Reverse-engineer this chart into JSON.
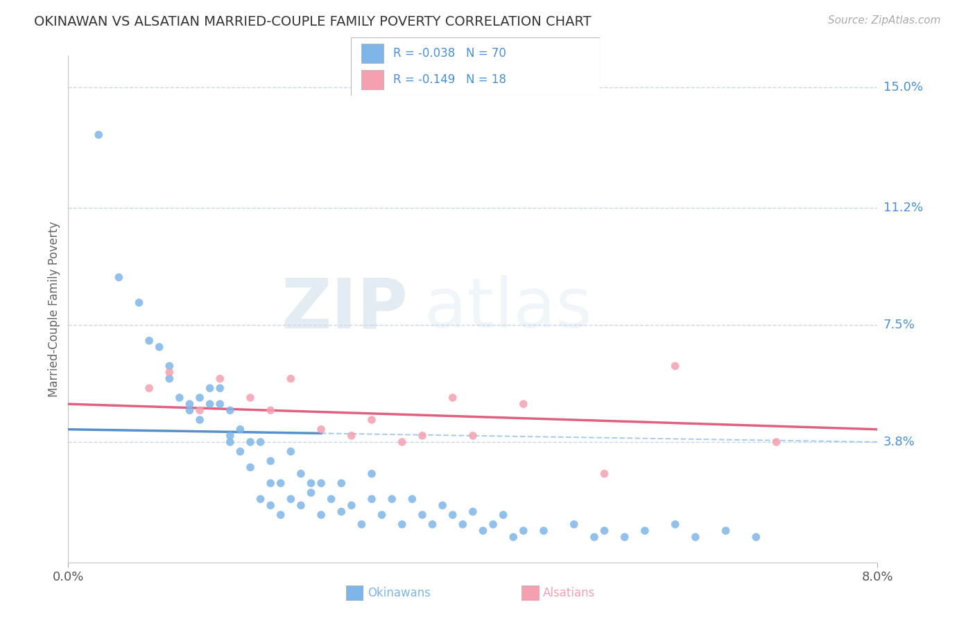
{
  "title": "OKINAWAN VS ALSATIAN MARRIED-COUPLE FAMILY POVERTY CORRELATION CHART",
  "source": "Source: ZipAtlas.com",
  "ylabel": "Married-Couple Family Poverty",
  "xlim": [
    0.0,
    0.08
  ],
  "ylim": [
    0.0,
    0.16
  ],
  "ytick_values": [
    0.038,
    0.075,
    0.112,
    0.15
  ],
  "ytick_labels": [
    "3.8%",
    "7.5%",
    "11.2%",
    "15.0%"
  ],
  "okinawan_color": "#7eb5e8",
  "okinawan_line_color": "#5590cc",
  "alsatian_color": "#f4a0b0",
  "alsatian_line_color": "#e06080",
  "legend_R1": "-0.038",
  "legend_N1": "70",
  "legend_R2": "-0.149",
  "legend_N2": "18",
  "grid_color": "#c8d8ea",
  "text_color": "#4a90d9",
  "okinawan_x": [
    0.003,
    0.005,
    0.007,
    0.008,
    0.009,
    0.01,
    0.01,
    0.011,
    0.012,
    0.012,
    0.013,
    0.013,
    0.014,
    0.014,
    0.015,
    0.015,
    0.016,
    0.016,
    0.016,
    0.017,
    0.017,
    0.018,
    0.018,
    0.019,
    0.019,
    0.02,
    0.02,
    0.02,
    0.021,
    0.021,
    0.022,
    0.022,
    0.023,
    0.023,
    0.024,
    0.024,
    0.025,
    0.025,
    0.026,
    0.027,
    0.027,
    0.028,
    0.029,
    0.03,
    0.03,
    0.031,
    0.032,
    0.033,
    0.034,
    0.035,
    0.036,
    0.037,
    0.038,
    0.039,
    0.04,
    0.041,
    0.042,
    0.043,
    0.044,
    0.045,
    0.047,
    0.05,
    0.052,
    0.053,
    0.055,
    0.057,
    0.06,
    0.062,
    0.065,
    0.068
  ],
  "okinawan_y": [
    0.135,
    0.09,
    0.082,
    0.07,
    0.068,
    0.058,
    0.062,
    0.052,
    0.05,
    0.048,
    0.052,
    0.045,
    0.055,
    0.05,
    0.05,
    0.055,
    0.048,
    0.04,
    0.038,
    0.042,
    0.035,
    0.038,
    0.03,
    0.038,
    0.02,
    0.032,
    0.025,
    0.018,
    0.025,
    0.015,
    0.035,
    0.02,
    0.018,
    0.028,
    0.022,
    0.025,
    0.015,
    0.025,
    0.02,
    0.016,
    0.025,
    0.018,
    0.012,
    0.02,
    0.028,
    0.015,
    0.02,
    0.012,
    0.02,
    0.015,
    0.012,
    0.018,
    0.015,
    0.012,
    0.016,
    0.01,
    0.012,
    0.015,
    0.008,
    0.01,
    0.01,
    0.012,
    0.008,
    0.01,
    0.008,
    0.01,
    0.012,
    0.008,
    0.01,
    0.008
  ],
  "alsatian_x": [
    0.008,
    0.01,
    0.013,
    0.015,
    0.018,
    0.02,
    0.022,
    0.025,
    0.028,
    0.03,
    0.033,
    0.035,
    0.038,
    0.04,
    0.045,
    0.053,
    0.06,
    0.07
  ],
  "alsatian_y": [
    0.055,
    0.06,
    0.048,
    0.058,
    0.052,
    0.048,
    0.058,
    0.042,
    0.04,
    0.045,
    0.038,
    0.04,
    0.052,
    0.04,
    0.05,
    0.028,
    0.062,
    0.038
  ],
  "wm_text1": "ZIP",
  "wm_text2": "atlas"
}
